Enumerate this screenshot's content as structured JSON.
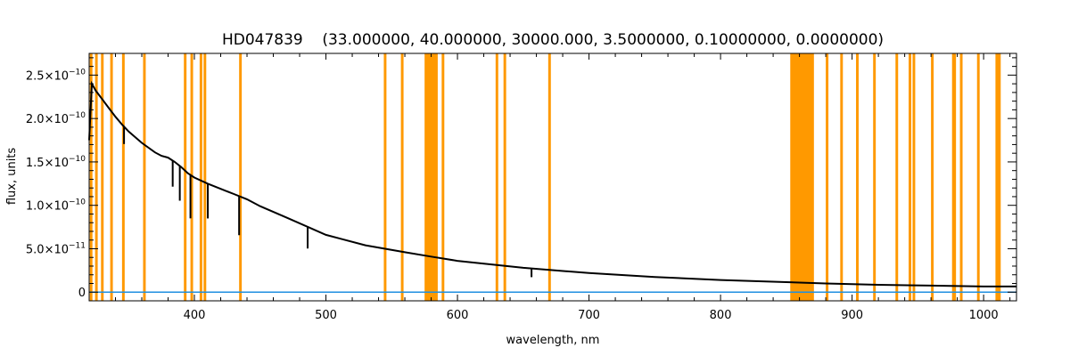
{
  "chart_data": {
    "type": "line",
    "title": "HD047839    (33.000000, 40.000000, 30000.000, 3.5000000, 0.10000000, 0.0000000)",
    "xlabel": "wavelength, nm",
    "ylabel": "flux, units",
    "xlim": [
      320,
      1025
    ],
    "ylim": [
      -1e-11,
      2.75e-10
    ],
    "x_ticks": [
      400,
      500,
      600,
      700,
      800,
      900,
      1000
    ],
    "x_tick_labels": [
      "400",
      "500",
      "600",
      "700",
      "800",
      "900",
      "1000"
    ],
    "y_ticks": [
      {
        "value": 0,
        "mant": "0",
        "exp": ""
      },
      {
        "value": 5e-11,
        "mant": "5.0×10",
        "exp": "−11"
      },
      {
        "value": 1e-10,
        "mant": "1.0×10",
        "exp": "−10"
      },
      {
        "value": 1.5e-10,
        "mant": "1.5×10",
        "exp": "−10"
      },
      {
        "value": 2e-10,
        "mant": "2.0×10",
        "exp": "−10"
      },
      {
        "value": 2.5e-10,
        "mant": "2.5×10",
        "exp": "−10"
      }
    ],
    "grid": false,
    "series": [
      {
        "color": "#000000",
        "x": [
          320,
          322,
          325,
          330,
          335,
          340,
          345,
          350,
          360,
          370,
          375,
          380,
          385,
          390,
          395,
          400,
          410,
          420,
          430,
          440,
          450,
          470,
          500,
          530,
          560,
          580,
          600,
          650,
          700,
          750,
          800,
          850,
          880,
          920,
          960,
          1000,
          1025
        ],
        "y": [
          1.75e-10,
          2.4e-10,
          2.32e-10,
          2.22e-10,
          2.12e-10,
          2.02e-10,
          1.93e-10,
          1.85e-10,
          1.72e-10,
          1.61e-10,
          1.57e-10,
          1.55e-10,
          1.5e-10,
          1.44e-10,
          1.37e-10,
          1.32e-10,
          1.25e-10,
          1.19e-10,
          1.13e-10,
          1.07e-10,
          9.9e-11,
          8.6e-11,
          6.6e-11,
          5.4e-11,
          4.6e-11,
          4.1e-11,
          3.6e-11,
          2.8e-11,
          2.2e-11,
          1.75e-11,
          1.4e-11,
          1.15e-11,
          1e-11,
          8.5e-12,
          7.5e-12,
          6.5e-12,
          6.5e-12
        ]
      },
      {
        "color": "#1f8fe0",
        "x": [
          320,
          1025
        ],
        "y": [
          0,
          0
        ]
      }
    ],
    "absorption_lines": [
      {
        "x": 346.5,
        "depth": 2e-11
      },
      {
        "x": 383.5,
        "depth": 3e-11
      },
      {
        "x": 388.9,
        "depth": 4e-11
      },
      {
        "x": 397.0,
        "depth": 5e-11
      },
      {
        "x": 410.2,
        "depth": 4e-11
      },
      {
        "x": 434.0,
        "depth": 4.5e-11
      },
      {
        "x": 486.1,
        "depth": 2.5e-11
      },
      {
        "x": 656.3,
        "depth": 1e-11
      }
    ],
    "masked_regions": [
      [
        320.5,
        322.5
      ],
      [
        324.5,
        326.5
      ],
      [
        329,
        331
      ],
      [
        336,
        338
      ],
      [
        345,
        347
      ],
      [
        361,
        363
      ],
      [
        392,
        394
      ],
      [
        397,
        399
      ],
      [
        404,
        406
      ],
      [
        407,
        409
      ],
      [
        434,
        436
      ],
      [
        544,
        546
      ],
      [
        557,
        559
      ],
      [
        575,
        585
      ],
      [
        588,
        590
      ],
      [
        629,
        631
      ],
      [
        635,
        637
      ],
      [
        669,
        671
      ],
      [
        853,
        871
      ],
      [
        880,
        882
      ],
      [
        891,
        893
      ],
      [
        903,
        905
      ],
      [
        916,
        918
      ],
      [
        933,
        935
      ],
      [
        943,
        945
      ],
      [
        946,
        948
      ],
      [
        960,
        962
      ],
      [
        976,
        979
      ],
      [
        982,
        984
      ],
      [
        995,
        997
      ],
      [
        1009,
        1013
      ]
    ],
    "mask_color": "#ff9900"
  }
}
